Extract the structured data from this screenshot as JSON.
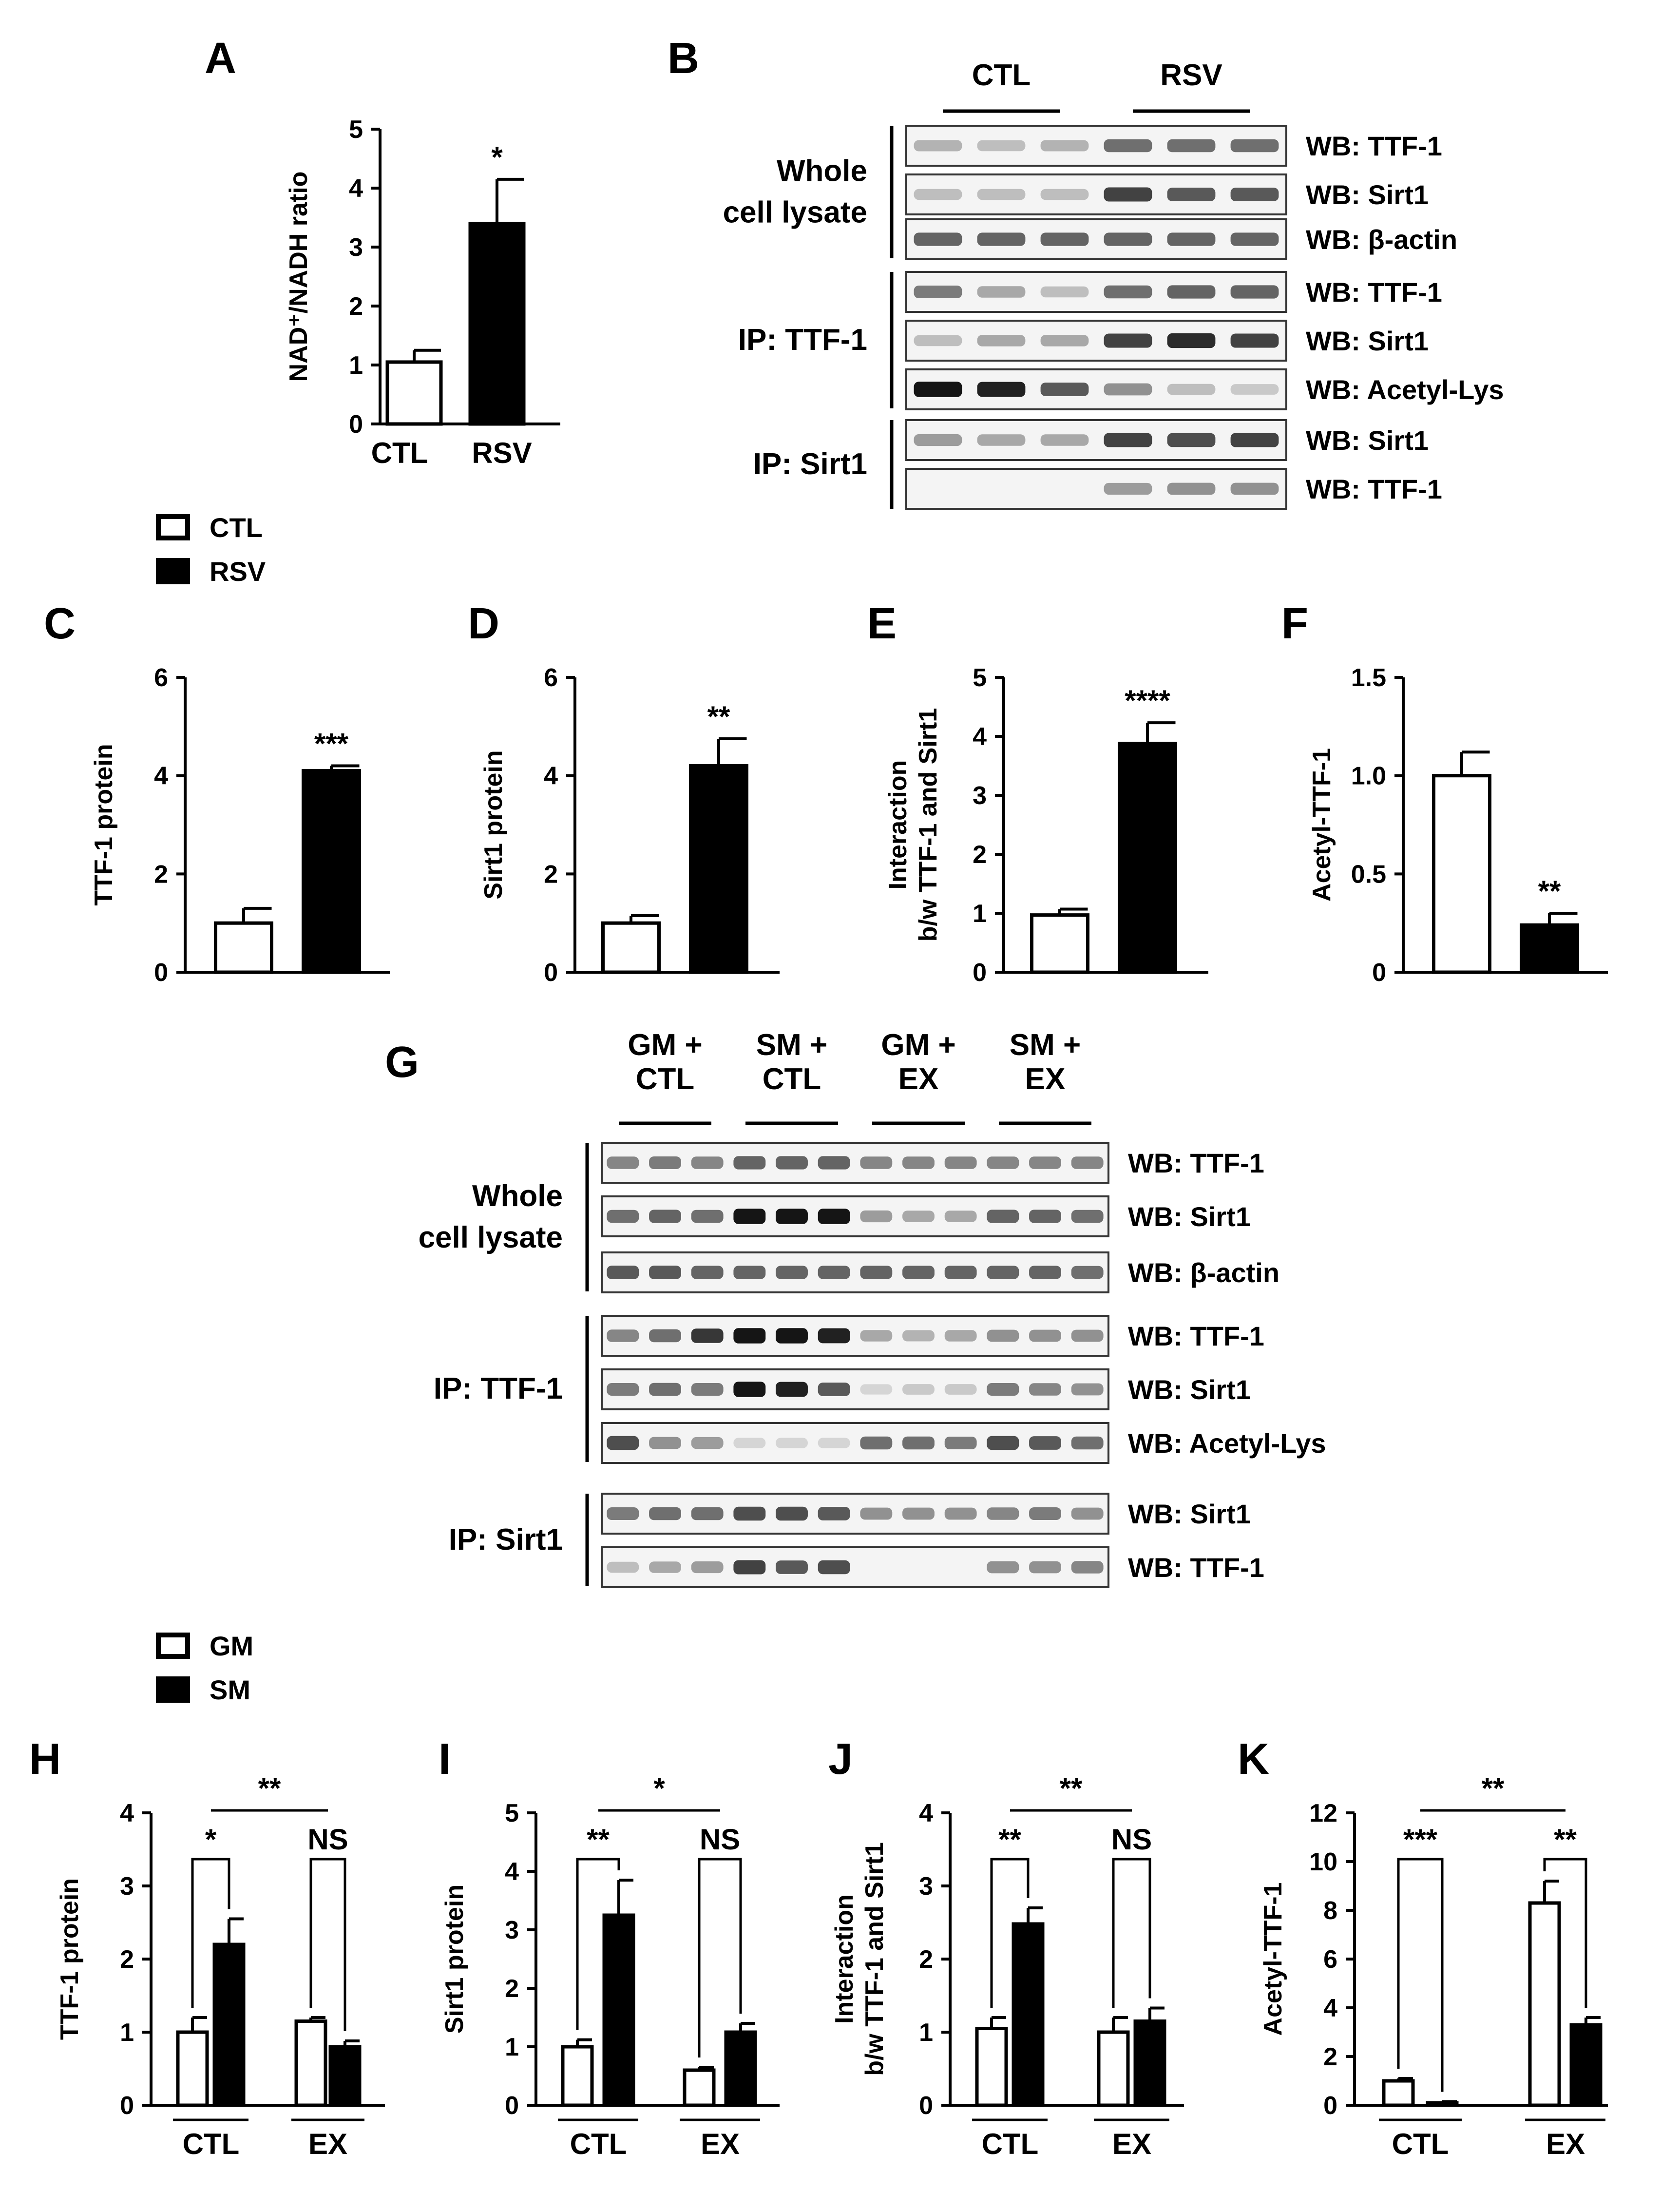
{
  "panel_labels": [
    "A",
    "B",
    "C",
    "D",
    "E",
    "F",
    "G",
    "H",
    "I",
    "J",
    "K"
  ],
  "legend_top": [
    {
      "label": "CTL",
      "fill": "#ffffff"
    },
    {
      "label": "RSV",
      "fill": "#000000"
    }
  ],
  "legend_bottom": [
    {
      "label": "GM",
      "fill": "#ffffff"
    },
    {
      "label": "SM",
      "fill": "#000000"
    }
  ],
  "blot_b": {
    "group_headers": [
      "CTL",
      "RSV"
    ],
    "sections": [
      {
        "label_lines": [
          "Whole",
          "cell lysate"
        ]
      },
      {
        "label_lines": [
          "IP: TTF-1"
        ]
      },
      {
        "label_lines": [
          "IP: Sirt1"
        ]
      }
    ],
    "lanes": 6,
    "rows": [
      {
        "label": "WB: TTF-1",
        "intensity": [
          0.25,
          0.2,
          0.25,
          0.55,
          0.55,
          0.55
        ]
      },
      {
        "label": "WB: Sirt1",
        "intensity": [
          0.2,
          0.2,
          0.2,
          0.75,
          0.65,
          0.65
        ]
      },
      {
        "label": "WB: β-actin",
        "intensity": [
          0.6,
          0.6,
          0.6,
          0.6,
          0.6,
          0.6
        ]
      },
      {
        "label": "WB: TTF-1",
        "intensity": [
          0.5,
          0.3,
          0.2,
          0.55,
          0.6,
          0.6
        ]
      },
      {
        "label": "WB: Sirt1",
        "intensity": [
          0.2,
          0.3,
          0.3,
          0.75,
          0.85,
          0.75
        ]
      },
      {
        "label": "WB: Acetyl-Lys",
        "intensity": [
          0.95,
          0.9,
          0.65,
          0.4,
          0.2,
          0.15
        ]
      },
      {
        "label": "WB: Sirt1",
        "intensity": [
          0.35,
          0.3,
          0.3,
          0.75,
          0.7,
          0.75
        ]
      },
      {
        "label": "WB: TTF-1",
        "intensity": [
          0,
          0,
          0,
          0.35,
          0.4,
          0.4
        ]
      }
    ]
  },
  "blot_g": {
    "group_headers": [
      [
        "GM +",
        "CTL"
      ],
      [
        "SM +",
        "CTL"
      ],
      [
        "GM +",
        "EX"
      ],
      [
        "SM +",
        "EX"
      ]
    ],
    "sections": [
      {
        "label_lines": [
          "Whole",
          "cell lysate"
        ]
      },
      {
        "label_lines": [
          "IP: TTF-1"
        ]
      },
      {
        "label_lines": [
          "IP: Sirt1"
        ]
      }
    ],
    "lanes": 12,
    "rows": [
      {
        "label": "WB: TTF-1",
        "intensity": [
          0.45,
          0.5,
          0.45,
          0.6,
          0.6,
          0.6,
          0.45,
          0.45,
          0.45,
          0.45,
          0.45,
          0.45
        ]
      },
      {
        "label": "WB: Sirt1",
        "intensity": [
          0.55,
          0.6,
          0.55,
          0.95,
          0.95,
          0.95,
          0.35,
          0.3,
          0.3,
          0.6,
          0.6,
          0.55
        ]
      },
      {
        "label": "WB: β-actin",
        "intensity": [
          0.65,
          0.65,
          0.6,
          0.6,
          0.6,
          0.6,
          0.6,
          0.6,
          0.6,
          0.6,
          0.6,
          0.55
        ]
      },
      {
        "label": "WB: TTF-1",
        "intensity": [
          0.45,
          0.55,
          0.8,
          0.95,
          0.95,
          0.9,
          0.3,
          0.25,
          0.3,
          0.4,
          0.4,
          0.4
        ]
      },
      {
        "label": "WB: Sirt1",
        "intensity": [
          0.5,
          0.55,
          0.5,
          0.95,
          0.9,
          0.65,
          0.1,
          0.15,
          0.15,
          0.5,
          0.45,
          0.4
        ]
      },
      {
        "label": "WB: Acetyl-Lys",
        "intensity": [
          0.7,
          0.4,
          0.35,
          0.1,
          0.1,
          0.1,
          0.55,
          0.55,
          0.5,
          0.7,
          0.65,
          0.55
        ]
      },
      {
        "label": "WB: Sirt1",
        "intensity": [
          0.5,
          0.55,
          0.55,
          0.7,
          0.7,
          0.65,
          0.4,
          0.4,
          0.4,
          0.45,
          0.5,
          0.4
        ]
      },
      {
        "label": "WB: TTF-1",
        "intensity": [
          0.2,
          0.3,
          0.35,
          0.75,
          0.65,
          0.7,
          0,
          0,
          0,
          0.4,
          0.4,
          0.45
        ]
      }
    ]
  },
  "chart_data": [
    {
      "panel": "A",
      "type": "bar",
      "categories": [
        "CTL",
        "RSV"
      ],
      "values": [
        1.05,
        3.4
      ],
      "errors": [
        0.2,
        0.75
      ],
      "fills": [
        "#ffffff",
        "#000000"
      ],
      "ylabel": "NAD⁺/NADH ratio",
      "ylim": [
        0,
        5
      ],
      "yticks": [
        "0",
        "1",
        "2",
        "3",
        "4",
        "5"
      ],
      "significance": "*"
    },
    {
      "panel": "C",
      "type": "bar",
      "categories": [
        "CTL",
        "RSV"
      ],
      "values": [
        1.0,
        4.1
      ],
      "errors": [
        0.3,
        0.1
      ],
      "fills": [
        "#ffffff",
        "#000000"
      ],
      "ylabel": "TTF-1 protein",
      "ylim": [
        0,
        6
      ],
      "yticks": [
        "0",
        "2",
        "4",
        "6"
      ],
      "significance": "***"
    },
    {
      "panel": "D",
      "type": "bar",
      "categories": [
        "CTL",
        "RSV"
      ],
      "values": [
        1.0,
        4.2
      ],
      "errors": [
        0.15,
        0.55
      ],
      "fills": [
        "#ffffff",
        "#000000"
      ],
      "ylabel": "Sirt1 protein",
      "ylim": [
        0,
        6
      ],
      "yticks": [
        "0",
        "2",
        "4",
        "6"
      ],
      "significance": "**"
    },
    {
      "panel": "E",
      "type": "bar",
      "categories": [
        "CTL",
        "RSV"
      ],
      "values": [
        0.97,
        3.88
      ],
      "errors": [
        0.1,
        0.35
      ],
      "fills": [
        "#ffffff",
        "#000000"
      ],
      "ylabel_lines": [
        "Interaction",
        "b/w TTF-1 and Sirt1"
      ],
      "ylim": [
        0,
        5
      ],
      "yticks": [
        "0",
        "1",
        "2",
        "3",
        "4",
        "5"
      ],
      "significance": "****"
    },
    {
      "panel": "F",
      "type": "bar",
      "categories": [
        "CTL",
        "RSV"
      ],
      "values": [
        1.0,
        0.24
      ],
      "errors": [
        0.12,
        0.06
      ],
      "fills": [
        "#ffffff",
        "#000000"
      ],
      "ylabel": "Acetyl-TTF-1",
      "ylim": [
        0,
        1.5
      ],
      "yticks": [
        "0",
        "0.5",
        "1.0",
        "1.5"
      ],
      "significance": "**"
    },
    {
      "panel": "H",
      "type": "bar",
      "groups": [
        "CTL",
        "EX"
      ],
      "series": [
        {
          "name": "GM",
          "values": [
            1.0,
            1.15
          ],
          "errors": [
            0.2,
            0.05
          ]
        },
        {
          "name": "SM",
          "values": [
            2.2,
            0.8
          ],
          "errors": [
            0.35,
            0.08
          ]
        }
      ],
      "ylabel": "TTF-1 protein",
      "ylim": [
        0,
        4
      ],
      "yticks": [
        "0",
        "1",
        "2",
        "3",
        "4"
      ],
      "sig_within": [
        "*",
        "NS"
      ],
      "sig_between": "**"
    },
    {
      "panel": "I",
      "type": "bar",
      "groups": [
        "CTL",
        "EX"
      ],
      "series": [
        {
          "name": "GM",
          "values": [
            1.0,
            0.6
          ],
          "errors": [
            0.12,
            0.05
          ]
        },
        {
          "name": "SM",
          "values": [
            3.25,
            1.25
          ],
          "errors": [
            0.6,
            0.15
          ]
        }
      ],
      "ylabel": "Sirt1 protein",
      "ylim": [
        0,
        5
      ],
      "yticks": [
        "0",
        "1",
        "2",
        "3",
        "4",
        "5"
      ],
      "sig_within": [
        "**",
        "NS"
      ],
      "sig_between": "*"
    },
    {
      "panel": "J",
      "type": "bar",
      "groups": [
        "CTL",
        "EX"
      ],
      "series": [
        {
          "name": "GM",
          "values": [
            1.05,
            1.0
          ],
          "errors": [
            0.15,
            0.2
          ]
        },
        {
          "name": "SM",
          "values": [
            2.48,
            1.15
          ],
          "errors": [
            0.22,
            0.18
          ]
        }
      ],
      "ylabel_lines": [
        "Interaction",
        "b/w TTF-1 and Sirt1"
      ],
      "ylim": [
        0,
        4
      ],
      "yticks": [
        "0",
        "1",
        "2",
        "3",
        "4"
      ],
      "sig_within": [
        "**",
        "NS"
      ],
      "sig_between": "**"
    },
    {
      "panel": "K",
      "type": "bar",
      "groups": [
        "CTL",
        "EX"
      ],
      "series": [
        {
          "name": "GM",
          "values": [
            1.0,
            8.3
          ],
          "errors": [
            0.1,
            0.9
          ]
        },
        {
          "name": "SM",
          "values": [
            0.1,
            3.3
          ],
          "errors": [
            0.05,
            0.3
          ]
        }
      ],
      "ylabel": "Acetyl-TTF-1",
      "ylim": [
        0,
        12
      ],
      "yticks": [
        "0",
        "2",
        "4",
        "6",
        "8",
        "10",
        "12"
      ],
      "sig_within": [
        "***",
        "**"
      ],
      "sig_between": "**"
    }
  ]
}
